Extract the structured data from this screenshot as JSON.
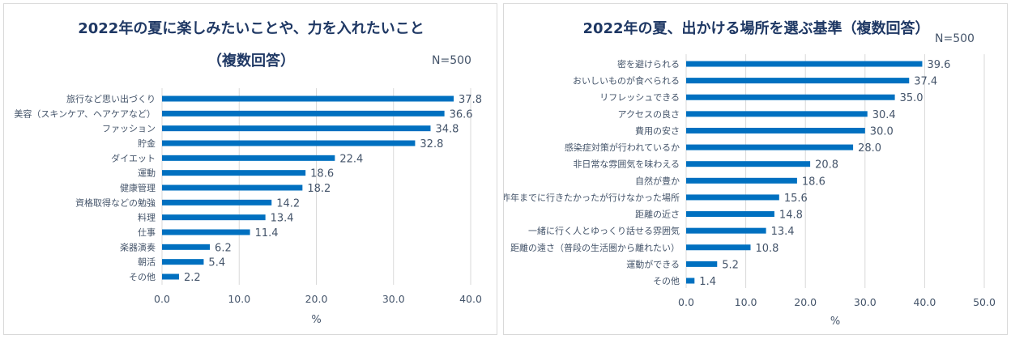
{
  "colors": {
    "bar": "#0070c0",
    "grid": "#d9d9d9",
    "title": "#1f3864",
    "text": "#44546a"
  },
  "chart_data": [
    {
      "type": "bar",
      "orientation": "horizontal",
      "title_line1": "2022年の夏に楽しみたいことや、力を入れたいこと",
      "title_line2": "（複数回答）",
      "n_label": "N=500",
      "xlabel": "%",
      "ylabel": "",
      "xlim": [
        0,
        40
      ],
      "xticks": [
        "0.0",
        "10.0",
        "20.0",
        "30.0",
        "40.0"
      ],
      "grid": true,
      "categories": [
        "旅行など思い出づくり",
        "美容（スキンケア、ヘアケアなど）",
        "ファッション",
        "貯金",
        "ダイエット",
        "運動",
        "健康管理",
        "資格取得などの勉強",
        "料理",
        "仕事",
        "楽器演奏",
        "朝活",
        "その他"
      ],
      "values": [
        37.8,
        36.6,
        34.8,
        32.8,
        22.4,
        18.6,
        18.2,
        14.2,
        13.4,
        11.4,
        6.2,
        5.4,
        2.2
      ],
      "value_labels": [
        "37.8",
        "36.6",
        "34.8",
        "32.8",
        "22.4",
        "18.6",
        "18.2",
        "14.2",
        "13.4",
        "11.4",
        "6.2",
        "5.4",
        "2.2"
      ]
    },
    {
      "type": "bar",
      "orientation": "horizontal",
      "title_line1": "2022年の夏、出かける場所を選ぶ基準（複数回答）",
      "title_line2": "",
      "n_label": "N=500",
      "xlabel": "%",
      "ylabel": "",
      "xlim": [
        0,
        50
      ],
      "xticks": [
        "0.0",
        "10.0",
        "20.0",
        "30.0",
        "40.0",
        "50.0"
      ],
      "grid": true,
      "categories": [
        "密を避けられる",
        "おいしいものが食べられる",
        "リフレッシュできる",
        "アクセスの良さ",
        "費用の安さ",
        "感染症対策が行われているか",
        "非日常な雰囲気を味わえる",
        "自然が豊か",
        "昨年までに行きたかったが行けなかった場所",
        "距離の近さ",
        "一緒に行く人とゆっくり話せる雰囲気",
        "距離の遠さ（普段の生活圏から離れたい）",
        "運動ができる",
        "その他"
      ],
      "values": [
        39.6,
        37.4,
        35.0,
        30.4,
        30.0,
        28.0,
        20.8,
        18.6,
        15.6,
        14.8,
        13.4,
        10.8,
        5.2,
        1.4
      ],
      "value_labels": [
        "39.6",
        "37.4",
        "35.0",
        "30.4",
        "30.0",
        "28.0",
        "20.8",
        "18.6",
        "15.6",
        "14.8",
        "13.4",
        "10.8",
        "5.2",
        "1.4"
      ]
    }
  ]
}
